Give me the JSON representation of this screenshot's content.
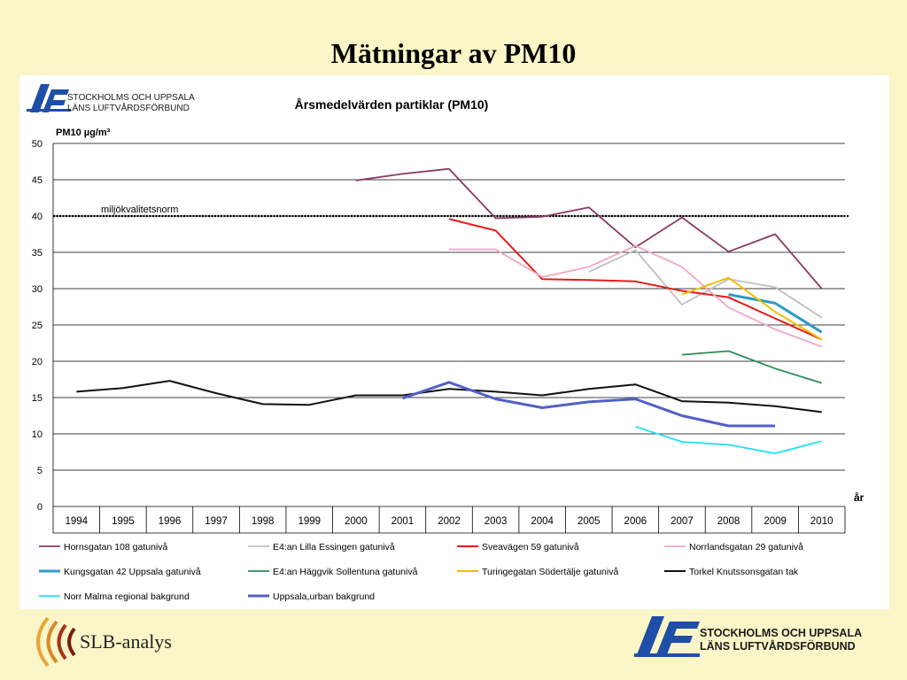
{
  "slide": {
    "title": "Mätningar av PM10",
    "footer_left_text": "SLB-analys",
    "footer_right_line1": "STOCKHOLMS OCH UPPSALA",
    "footer_right_line2": "LÄNS LUFTVÅRDSFÖRBUND"
  },
  "chart_header": {
    "logo_line1": "STOCKHOLMS OCH UPPSALA",
    "logo_line2": "LÄNS LUFTVÅRDSFÖRBUND"
  },
  "chart_data": {
    "type": "line",
    "title": "Årsmedelvärden partiklar (PM10)",
    "ylabel": "PM10 µg/m³",
    "xlabel": "år",
    "ylim": [
      0,
      50
    ],
    "yticks": [
      0,
      5,
      10,
      15,
      20,
      25,
      30,
      35,
      40,
      45,
      50
    ],
    "grid": true,
    "legend_position": "bottom",
    "x": [
      "1994",
      "1995",
      "1996",
      "1997",
      "1998",
      "1999",
      "2000",
      "2001",
      "2002",
      "2003",
      "2004",
      "2005",
      "2006",
      "2007",
      "2008",
      "2009",
      "2010"
    ],
    "reference_line": {
      "label": "miljökvalitetsnorm",
      "value": 40
    },
    "series": [
      {
        "name": "Hornsgatan 108 gatunivå",
        "color": "#8b3a62",
        "width": 1.8,
        "values": [
          null,
          null,
          null,
          null,
          null,
          null,
          44.9,
          45.8,
          46.5,
          39.7,
          39.9,
          41.2,
          35.7,
          39.8,
          35.1,
          37.5,
          30.0
        ]
      },
      {
        "name": "E4:an Lilla Essingen gatunivå",
        "color": "#c0c0c0",
        "width": 1.8,
        "values": [
          null,
          null,
          null,
          null,
          null,
          null,
          null,
          null,
          null,
          null,
          null,
          32.3,
          35.3,
          27.8,
          31.3,
          30.2,
          26.0
        ]
      },
      {
        "name": "Sveavägen 59 gatunivå",
        "color": "#e8191b",
        "width": 2,
        "values": [
          null,
          null,
          null,
          null,
          null,
          null,
          null,
          null,
          39.6,
          38.0,
          31.3,
          31.2,
          31.0,
          29.7,
          28.8,
          25.9,
          23.0
        ]
      },
      {
        "name": "Norrlandsgatan 29 gatunivå",
        "color": "#f4a6c8",
        "width": 1.8,
        "values": [
          null,
          null,
          null,
          null,
          null,
          null,
          null,
          null,
          35.4,
          35.4,
          31.6,
          33.0,
          35.9,
          33.0,
          27.4,
          24.4,
          22.0
        ]
      },
      {
        "name": "Kungsgatan 42 Uppsala gatunivå",
        "color": "#2e9bc4",
        "width": 3,
        "values": [
          null,
          null,
          null,
          null,
          null,
          null,
          null,
          null,
          null,
          null,
          null,
          null,
          null,
          null,
          29.2,
          28.0,
          24.0
        ]
      },
      {
        "name": "E4:an Häggvik Sollentuna gatunivå",
        "color": "#2e8b57",
        "width": 1.8,
        "values": [
          null,
          null,
          null,
          null,
          null,
          null,
          null,
          null,
          null,
          null,
          null,
          null,
          null,
          20.9,
          21.4,
          19.0,
          17.0
        ]
      },
      {
        "name": "Turingegatan Södertälje gatunivå",
        "color": "#f2c000",
        "width": 2,
        "values": [
          null,
          null,
          null,
          null,
          null,
          null,
          null,
          null,
          null,
          null,
          null,
          null,
          null,
          29.2,
          31.5,
          26.8,
          23.0
        ]
      },
      {
        "name": "Torkel Knutssonsgatan tak",
        "color": "#111111",
        "width": 2,
        "values": [
          15.8,
          16.3,
          17.3,
          15.6,
          14.1,
          14.0,
          15.3,
          15.3,
          16.2,
          15.8,
          15.3,
          16.2,
          16.8,
          14.5,
          14.3,
          13.8,
          13.0
        ]
      },
      {
        "name": "Norr Malma regional bakgrund",
        "color": "#22e0f0",
        "width": 1.8,
        "values": [
          null,
          null,
          null,
          null,
          null,
          null,
          null,
          null,
          null,
          null,
          null,
          null,
          11.0,
          8.9,
          8.5,
          7.3,
          9.0
        ]
      },
      {
        "name": "Uppsala,urban bakgrund",
        "color": "#5060c8",
        "width": 3,
        "values": [
          null,
          null,
          null,
          null,
          null,
          null,
          null,
          14.9,
          17.1,
          14.8,
          13.6,
          14.4,
          14.8,
          12.5,
          11.1,
          11.1,
          null
        ]
      }
    ]
  }
}
